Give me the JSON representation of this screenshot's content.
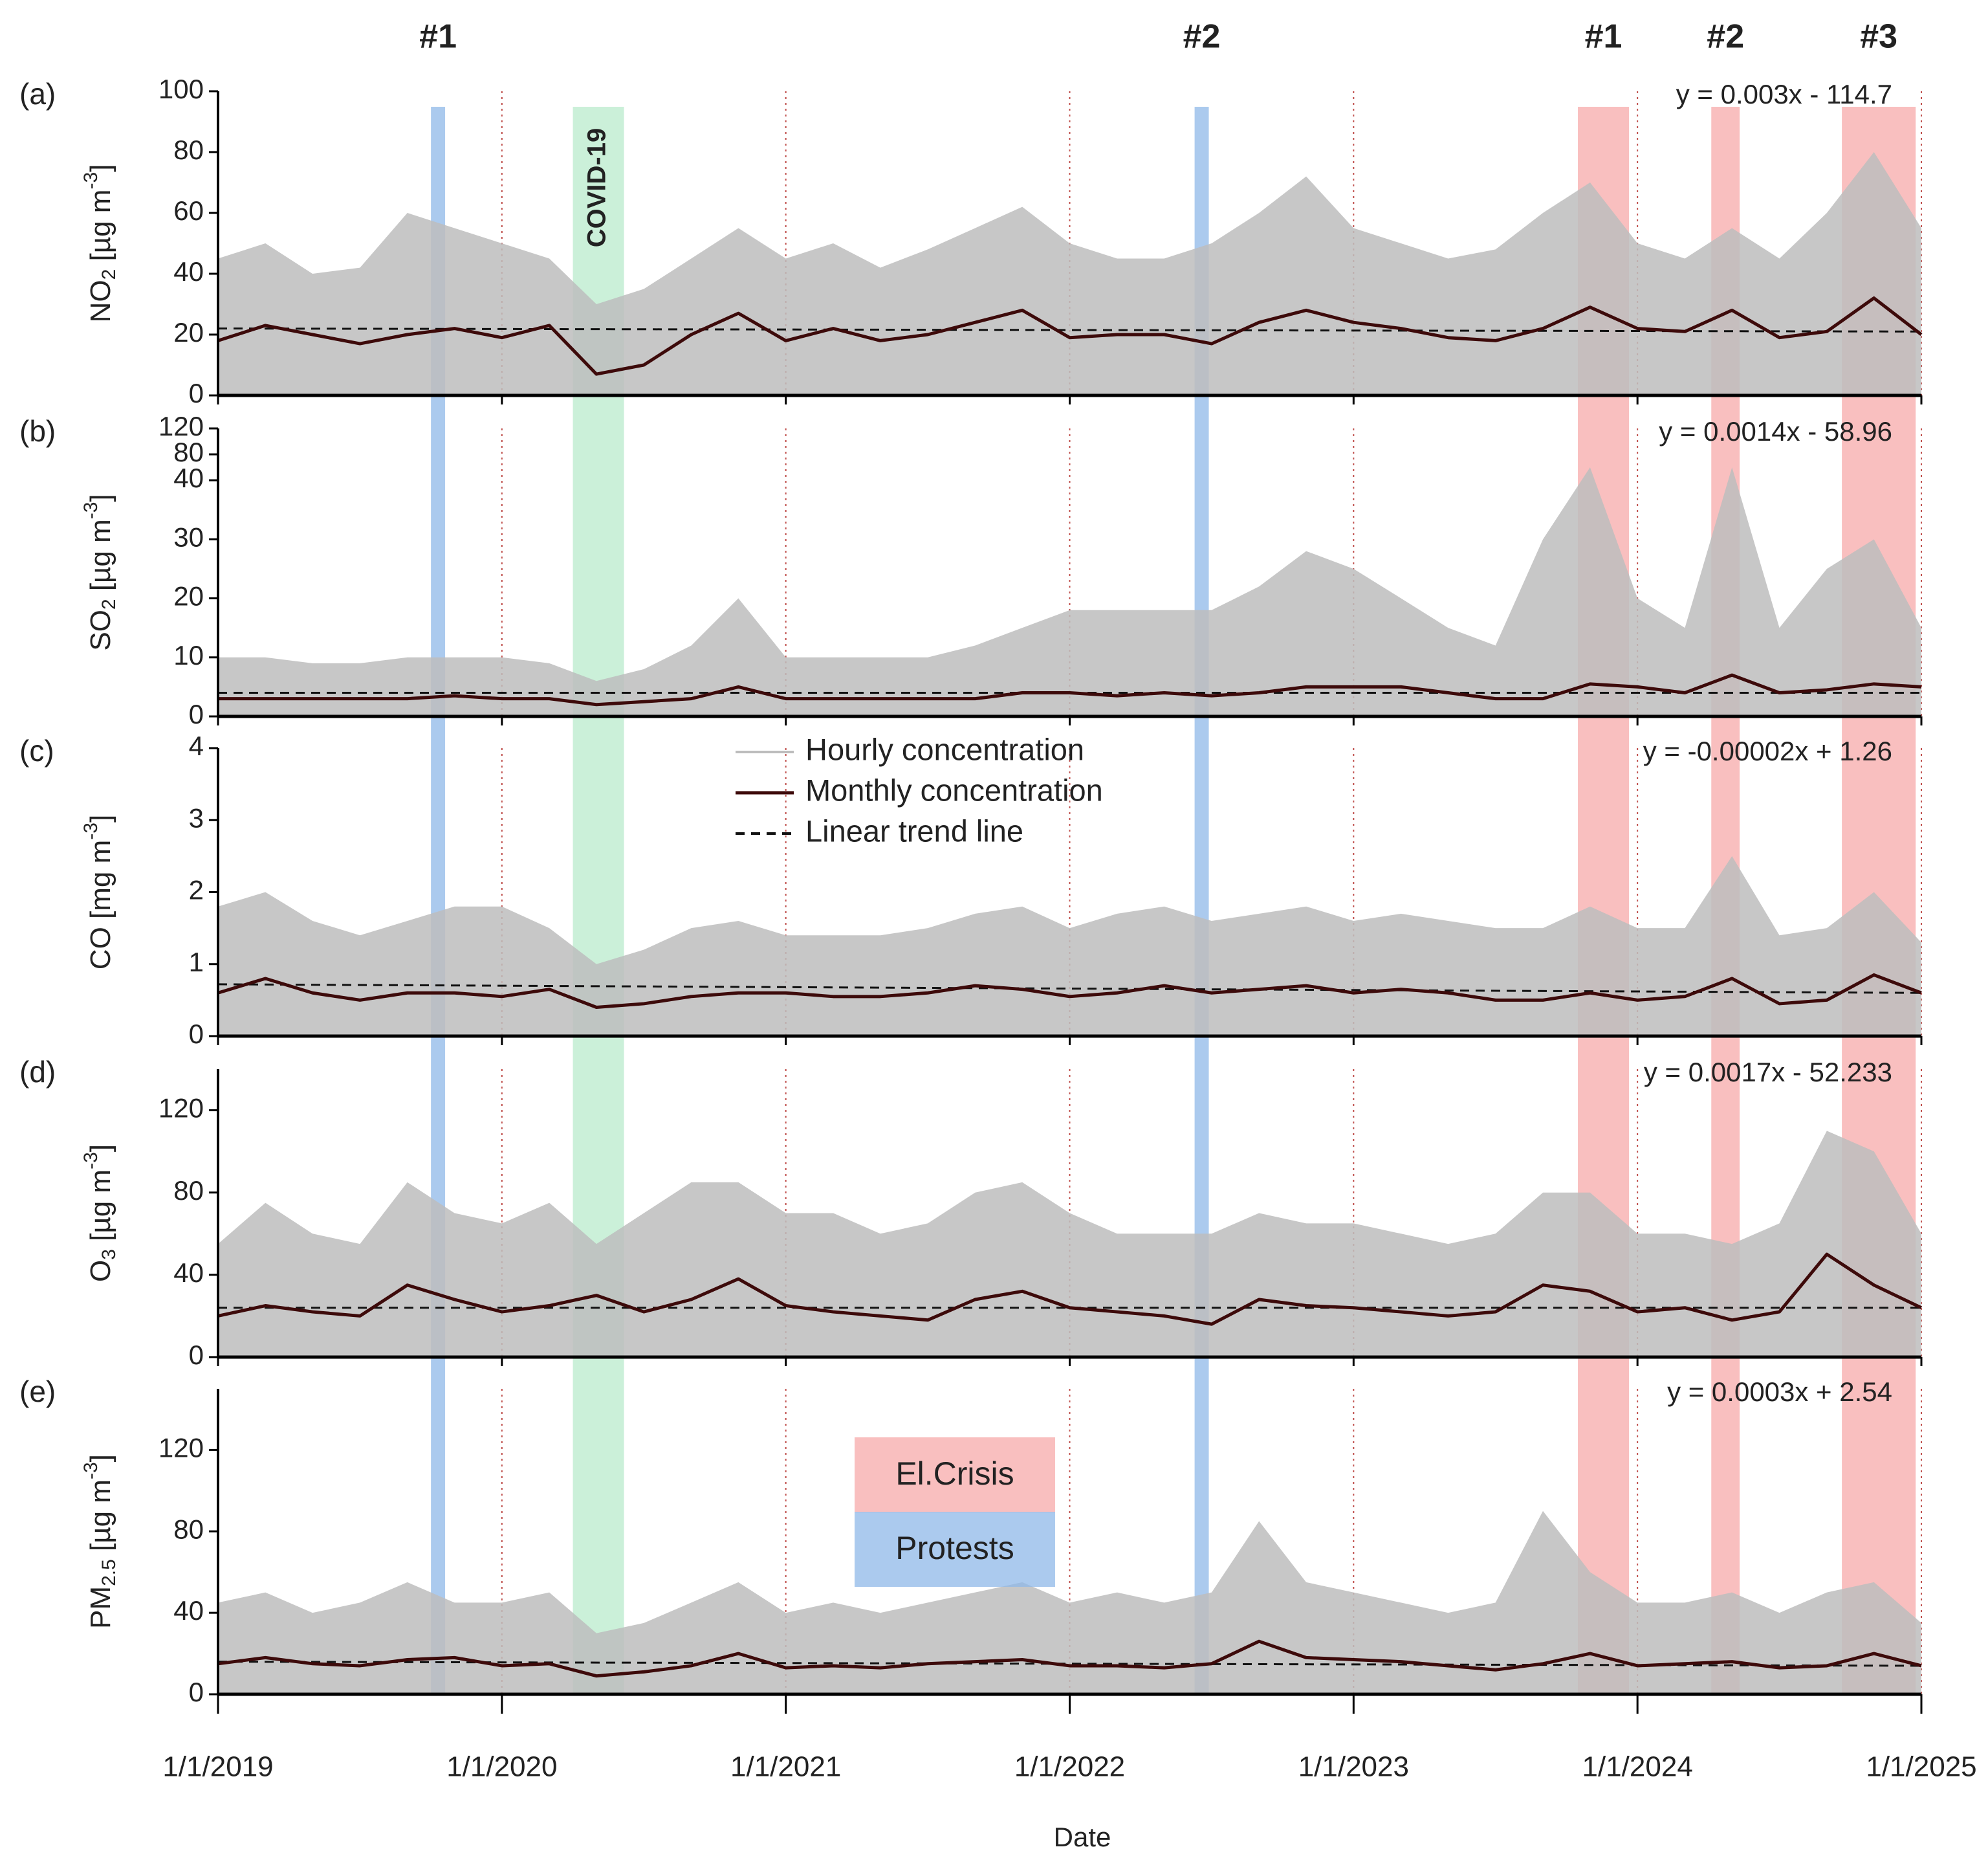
{
  "shared": {
    "x": [
      2019,
      2019.167,
      2019.333,
      2019.5,
      2019.667,
      2019.833,
      2020,
      2020.167,
      2020.333,
      2020.5,
      2020.667,
      2020.833,
      2021,
      2021.167,
      2021.333,
      2021.5,
      2021.667,
      2021.833,
      2022,
      2022.167,
      2022.333,
      2022.5,
      2022.667,
      2022.833,
      2023,
      2023.167,
      2023.333,
      2023.5,
      2023.667,
      2023.833,
      2024,
      2024.167,
      2024.333,
      2024.5,
      2024.667,
      2024.833,
      2025
    ],
    "xlim": [
      2019,
      2025
    ],
    "xticks": [
      {
        "value": 2019,
        "label": "1/1/2019"
      },
      {
        "value": 2020,
        "label": "1/1/2020"
      },
      {
        "value": 2021,
        "label": "1/1/2021"
      },
      {
        "value": 2022,
        "label": "1/1/2022"
      },
      {
        "value": 2023,
        "label": "1/1/2023"
      },
      {
        "value": 2024,
        "label": "1/1/2024"
      },
      {
        "value": 2025,
        "label": "1/1/2025"
      }
    ],
    "xlabel": "Date",
    "grid": true,
    "legend": {
      "hourly": "Hourly concentration",
      "monthly": "Monthly concentration",
      "trend": "Linear trend line"
    },
    "protests": {
      "legend": "Protests",
      "color": "#8fb8e8",
      "label_color": "#2e5f9e",
      "periods": [
        {
          "label": "#1",
          "start": 2019.75,
          "end": 2019.8
        },
        {
          "label": "#2",
          "start": 2022.44,
          "end": 2022.49
        }
      ]
    },
    "crisis": {
      "legend": "El.Crisis",
      "color": "#f7a9a9",
      "label_color": "#c0141c",
      "periods": [
        {
          "label": "#1",
          "start": 2023.79,
          "end": 2023.97
        },
        {
          "label": "#2",
          "start": 2024.26,
          "end": 2024.36
        },
        {
          "label": "#3",
          "start": 2024.72,
          "end": 2024.98
        }
      ]
    },
    "covid": {
      "label": "COVID-19",
      "color": "#a8e6c0",
      "start": 2020.25,
      "end": 2020.43
    }
  },
  "chart_data": [
    {
      "type": "line",
      "panel": "(a)",
      "ylabel": {
        "main": "NO",
        "sub": "2",
        "unit": " [µg m",
        "sup": "-3",
        "end": "]"
      },
      "equation": "y = 0.003x - 114.7",
      "ylim": [
        0,
        100
      ],
      "yticks": [
        0,
        20,
        40,
        60,
        80,
        100
      ],
      "hourly": {
        "color": "#bdbdbd",
        "values": [
          45,
          50,
          40,
          42,
          60,
          55,
          50,
          45,
          30,
          35,
          45,
          55,
          45,
          50,
          42,
          48,
          55,
          62,
          50,
          45,
          45,
          50,
          60,
          72,
          55,
          50,
          45,
          48,
          60,
          70,
          50,
          45,
          55,
          45,
          60,
          80,
          55
        ]
      },
      "monthly": {
        "color": "#3d0a0a",
        "values": [
          18,
          23,
          20,
          17,
          20,
          22,
          19,
          23,
          7,
          10,
          20,
          27,
          18,
          22,
          18,
          20,
          24,
          28,
          19,
          20,
          20,
          17,
          24,
          28,
          24,
          22,
          19,
          18,
          22,
          29,
          22,
          21,
          28,
          19,
          21,
          32,
          20
        ]
      },
      "trend": {
        "x": [
          2019,
          2025
        ],
        "values": [
          22,
          21
        ]
      }
    },
    {
      "type": "line",
      "panel": "(b)",
      "ylabel": {
        "main": "SO",
        "sub": "2",
        "unit": " [µg m",
        "sup": "-3",
        "end": "]"
      },
      "equation": "y = 0.0014x - 58.96",
      "ylim": [
        0,
        120
      ],
      "ybreak": 40,
      "yticks": [
        0,
        10,
        20,
        30,
        40,
        80,
        120
      ],
      "hourly": {
        "color": "#bdbdbd",
        "values": [
          10,
          10,
          9,
          9,
          10,
          10,
          10,
          9,
          6,
          8,
          12,
          20,
          10,
          10,
          10,
          10,
          12,
          15,
          18,
          18,
          18,
          18,
          22,
          28,
          25,
          20,
          15,
          12,
          30,
          60,
          20,
          15,
          60,
          15,
          25,
          30,
          15
        ]
      },
      "monthly": {
        "color": "#3d0a0a",
        "values": [
          3,
          3,
          3,
          3,
          3,
          3.5,
          3,
          3,
          2,
          2.5,
          3,
          5,
          3,
          3,
          3,
          3,
          3,
          4,
          4,
          3.5,
          4,
          3.5,
          4,
          5,
          5,
          5,
          4,
          3,
          3,
          5.5,
          5,
          4,
          7,
          4,
          4.5,
          5.5,
          5
        ]
      },
      "trend": {
        "x": [
          2019,
          2025
        ],
        "values": [
          4,
          4
        ]
      }
    },
    {
      "type": "line",
      "panel": "(c)",
      "ylabel": {
        "main": "CO [mg m",
        "sup": "-3",
        "end": "]"
      },
      "equation": "y = -0.00002x + 1.26",
      "ylim": [
        0,
        4
      ],
      "yticks": [
        0,
        1,
        2,
        3,
        4
      ],
      "show_legend": true,
      "hourly": {
        "color": "#bdbdbd",
        "values": [
          1.8,
          2,
          1.6,
          1.4,
          1.6,
          1.8,
          1.8,
          1.5,
          1,
          1.2,
          1.5,
          1.6,
          1.4,
          1.4,
          1.4,
          1.5,
          1.7,
          1.8,
          1.5,
          1.7,
          1.8,
          1.6,
          1.7,
          1.8,
          1.6,
          1.7,
          1.6,
          1.5,
          1.5,
          1.8,
          1.5,
          1.5,
          2.5,
          1.4,
          1.5,
          2,
          1.3
        ]
      },
      "monthly": {
        "color": "#3d0a0a",
        "values": [
          0.6,
          0.8,
          0.6,
          0.5,
          0.6,
          0.6,
          0.55,
          0.65,
          0.4,
          0.45,
          0.55,
          0.6,
          0.6,
          0.55,
          0.55,
          0.6,
          0.7,
          0.65,
          0.55,
          0.6,
          0.7,
          0.6,
          0.65,
          0.7,
          0.6,
          0.65,
          0.6,
          0.5,
          0.5,
          0.6,
          0.5,
          0.55,
          0.8,
          0.45,
          0.5,
          0.85,
          0.6
        ]
      },
      "trend": {
        "x": [
          2019,
          2025
        ],
        "values": [
          0.72,
          0.6
        ]
      }
    },
    {
      "type": "line",
      "panel": "(d)",
      "ylabel": {
        "main": "O",
        "sub": "3",
        "unit": " [µg m",
        "sup": "-3",
        "end": "]"
      },
      "equation": "y = 0.0017x - 52.233",
      "ylim": [
        0,
        140
      ],
      "yticks": [
        0,
        40,
        80,
        120
      ],
      "hourly": {
        "color": "#bdbdbd",
        "values": [
          55,
          75,
          60,
          55,
          85,
          70,
          65,
          75,
          55,
          70,
          85,
          85,
          70,
          70,
          60,
          65,
          80,
          85,
          70,
          60,
          60,
          60,
          70,
          65,
          65,
          60,
          55,
          60,
          80,
          80,
          60,
          60,
          55,
          65,
          110,
          100,
          60
        ]
      },
      "monthly": {
        "color": "#3d0a0a",
        "values": [
          20,
          25,
          22,
          20,
          35,
          28,
          22,
          25,
          30,
          22,
          28,
          38,
          25,
          22,
          20,
          18,
          28,
          32,
          24,
          22,
          20,
          16,
          28,
          25,
          24,
          22,
          20,
          22,
          35,
          32,
          22,
          24,
          18,
          22,
          50,
          35,
          24
        ]
      },
      "trend": {
        "x": [
          2019,
          2025
        ],
        "values": [
          24,
          24
        ]
      }
    },
    {
      "type": "line",
      "panel": "(e)",
      "ylabel": {
        "main": "PM",
        "sub": "2.5",
        "unit": " [µg m",
        "sup": "-3",
        "end": "]"
      },
      "equation": "y = 0.0003x + 2.54",
      "ylim": [
        0,
        150
      ],
      "yticks": [
        0,
        40,
        80,
        120
      ],
      "show_box_legend": true,
      "hourly": {
        "color": "#bdbdbd",
        "values": [
          45,
          50,
          40,
          45,
          55,
          45,
          45,
          50,
          30,
          35,
          45,
          55,
          40,
          45,
          40,
          45,
          50,
          55,
          45,
          50,
          45,
          50,
          85,
          55,
          50,
          45,
          40,
          45,
          90,
          60,
          45,
          45,
          50,
          40,
          50,
          55,
          35
        ]
      },
      "monthly": {
        "color": "#3d0a0a",
        "values": [
          15,
          18,
          15,
          14,
          17,
          18,
          14,
          15,
          9,
          11,
          14,
          20,
          13,
          14,
          13,
          15,
          16,
          17,
          14,
          14,
          13,
          15,
          26,
          18,
          17,
          16,
          14,
          12,
          15,
          20,
          14,
          15,
          16,
          13,
          14,
          20,
          14
        ]
      },
      "trend": {
        "x": [
          2019,
          2025
        ],
        "values": [
          16,
          14
        ]
      }
    }
  ]
}
